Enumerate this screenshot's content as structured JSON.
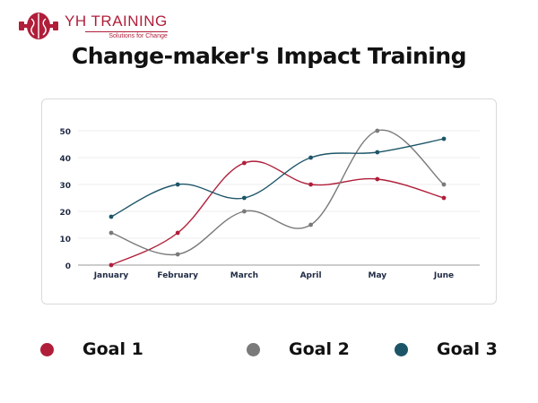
{
  "header": {
    "logo_title": "YH TRAINING",
    "logo_subtitle": "Solutions for Change",
    "logo_icon": "brain-icon",
    "brand_color": "#b01e3a"
  },
  "title": "Change-maker's Impact Training",
  "chart_data": {
    "type": "line",
    "title": "Change-maker's Impact Training",
    "xlabel": "",
    "ylabel": "",
    "categories": [
      "January",
      "February",
      "March",
      "April",
      "May",
      "June"
    ],
    "ylim": [
      0,
      50
    ],
    "yticks": [
      "0",
      "10",
      "20",
      "30",
      "40",
      "50"
    ],
    "grid": true,
    "smooth": true,
    "legend_position": "bottom",
    "series": [
      {
        "name": "Goal 1",
        "color": "#b01e3a",
        "values": [
          0,
          12,
          38,
          30,
          32,
          25
        ]
      },
      {
        "name": "Goal 2",
        "color": "#7a7a7a",
        "values": [
          12,
          4,
          20,
          15,
          50,
          30
        ]
      },
      {
        "name": "Goal 3",
        "color": "#1d5568",
        "values": [
          18,
          30,
          25,
          40,
          42,
          47
        ]
      }
    ]
  }
}
